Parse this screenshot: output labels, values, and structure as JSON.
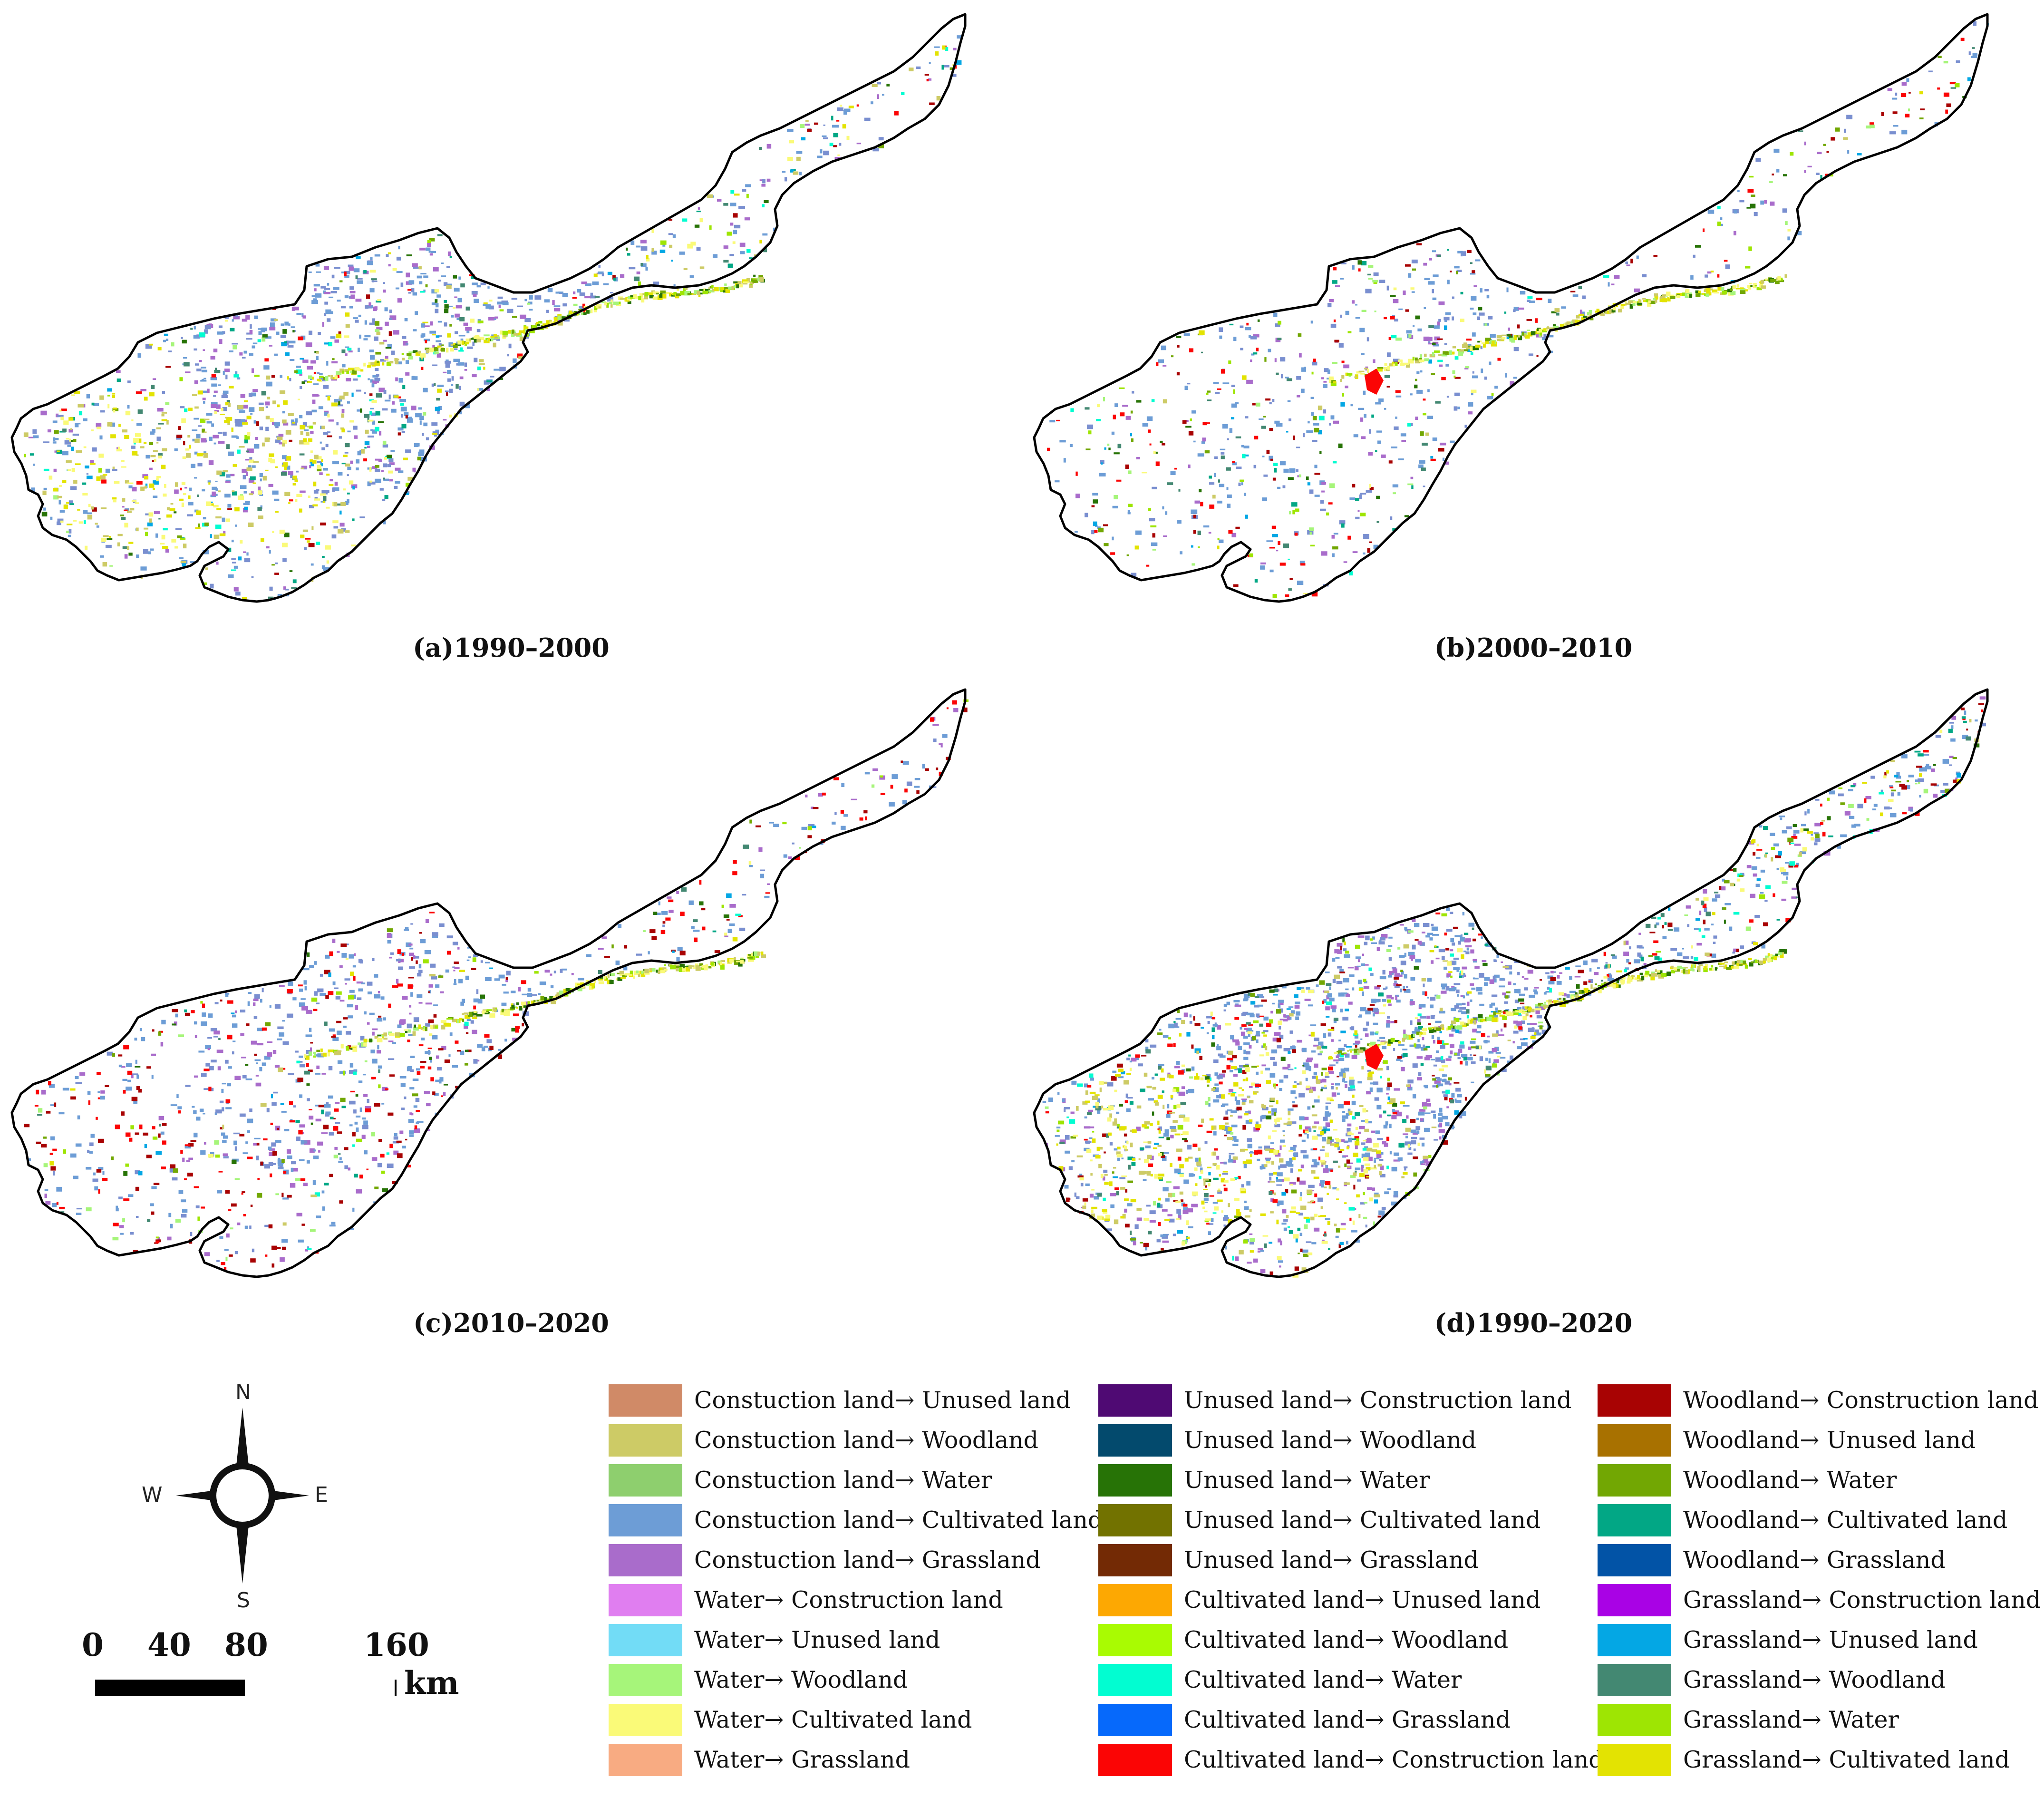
{
  "panels": [
    {
      "id": "a",
      "caption": "(a)1990–2000"
    },
    {
      "id": "b",
      "caption": "(b)2000–2010"
    },
    {
      "id": "c",
      "caption": "(c)2010–2020"
    },
    {
      "id": "d",
      "caption": "(d)1990–2020"
    }
  ],
  "compass": {
    "north": "N",
    "south": "S",
    "east": "E",
    "west": "W"
  },
  "scale": {
    "ticks": [
      "0",
      "40",
      "80",
      "160"
    ],
    "unit": "km"
  },
  "legend": [
    [
      {
        "label": "Constuction land→ Unused land",
        "color": "#d08a67"
      },
      {
        "label": "Constuction land→ Woodland",
        "color": "#cdcb66"
      },
      {
        "label": "Constuction land→ Water",
        "color": "#8ecf6e"
      },
      {
        "label": "Constuction land→ Cultivated land",
        "color": "#6d9dd6"
      },
      {
        "label": "Constuction land→ Grassland",
        "color": "#a96ccb"
      },
      {
        "label": "Water→ Construction land",
        "color": "#e07ef0"
      },
      {
        "label": "Water→ Unused land",
        "color": "#72dcf6"
      },
      {
        "label": "Water→ Woodland",
        "color": "#a6f57a"
      },
      {
        "label": "Water→ Cultivated land",
        "color": "#fafa78"
      },
      {
        "label": "Water→ Grassland",
        "color": "#f8ab82"
      }
    ],
    [
      {
        "label": "Unused land→ Construction land",
        "color": "#4f0a73"
      },
      {
        "label": "Unused land→ Woodland",
        "color": "#034a6d"
      },
      {
        "label": "Unused land→ Water",
        "color": "#277306"
      },
      {
        "label": "Unused land→ Cultivated land",
        "color": "#727200"
      },
      {
        "label": "Unused land→ Grassland",
        "color": "#732a05"
      },
      {
        "label": "Cultivated land→ Unused land",
        "color": "#fda802"
      },
      {
        "label": "Cultivated land→ Woodland",
        "color": "#a9fb02"
      },
      {
        "label": "Cultivated land→ Water",
        "color": "#02fdd1"
      },
      {
        "label": "Cultivated land→ Grassland",
        "color": "#0669fb"
      },
      {
        "label": "Cultivated land→ Construction land",
        "color": "#fb0505"
      }
    ],
    [
      {
        "label": "Woodland→ Construction land",
        "color": "#a80303"
      },
      {
        "label": "Woodland→ Unused land",
        "color": "#a87100"
      },
      {
        "label": "Woodland→ Water",
        "color": "#72a703"
      },
      {
        "label": "Woodland→ Cultivated land",
        "color": "#02a785"
      },
      {
        "label": "Woodland→ Grassland",
        "color": "#0253a6"
      },
      {
        "label": "Grassland→ Construction land",
        "color": "#a902e5"
      },
      {
        "label": "Grassland→ Unused land",
        "color": "#04a7e4"
      },
      {
        "label": "Grassland→ Woodland",
        "color": "#438872"
      },
      {
        "label": "Grassland→ Water",
        "color": "#9ee503"
      },
      {
        "label": "Grassland→ Cultivated land",
        "color": "#e3e302"
      }
    ]
  ]
}
